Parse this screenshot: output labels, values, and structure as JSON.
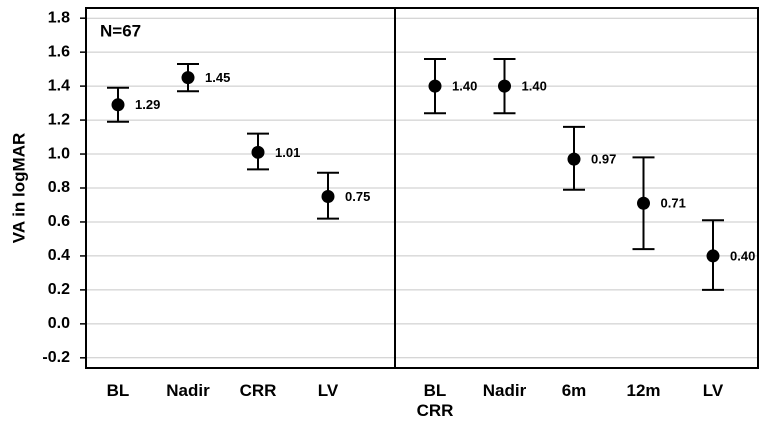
{
  "chart_data": [
    {
      "type": "errorbar",
      "ylabel": "VA in logMAR",
      "annotation": "N=67",
      "categories": [
        "BL",
        "Nadir",
        "CRR",
        "LV"
      ],
      "values": [
        1.29,
        1.45,
        1.01,
        0.75
      ],
      "value_labels": [
        "1.29",
        "1.45",
        "1.01",
        "0.75"
      ],
      "lower": [
        1.19,
        1.37,
        0.91,
        0.62
      ],
      "upper": [
        1.39,
        1.53,
        1.12,
        0.89
      ],
      "color": "#000000",
      "ylim": [
        -0.26,
        1.86
      ],
      "yticks": [
        {
          "value": -0.2,
          "label": "-0.2"
        },
        {
          "value": 0,
          "label": "0.0"
        },
        {
          "value": 0.2,
          "label": "0.2"
        },
        {
          "value": 0.4,
          "label": "0.4"
        },
        {
          "value": 0.6,
          "label": "0.6"
        },
        {
          "value": 0.8,
          "label": "0.8"
        },
        {
          "value": 1,
          "label": "1.0"
        },
        {
          "value": 1.2,
          "label": "1.2"
        },
        {
          "value": 1.4,
          "label": "1.4"
        },
        {
          "value": 1.6,
          "label": "1.6"
        },
        {
          "value": 1.8,
          "label": "1.8"
        }
      ],
      "grid": true
    },
    {
      "type": "errorbar",
      "categories": [
        "BL\nCRR",
        "Nadir",
        "6m",
        "12m",
        "LV"
      ],
      "values": [
        1.4,
        1.4,
        0.97,
        0.71,
        0.4
      ],
      "value_labels": [
        "1.40",
        "1.40",
        "0.97",
        "0.71",
        "0.40"
      ],
      "lower": [
        1.24,
        1.24,
        0.79,
        0.44,
        0.2
      ],
      "upper": [
        1.56,
        1.56,
        1.16,
        0.98,
        0.61
      ],
      "color": "#000000",
      "ylim": [
        -0.26,
        1.86
      ],
      "grid": true
    }
  ]
}
